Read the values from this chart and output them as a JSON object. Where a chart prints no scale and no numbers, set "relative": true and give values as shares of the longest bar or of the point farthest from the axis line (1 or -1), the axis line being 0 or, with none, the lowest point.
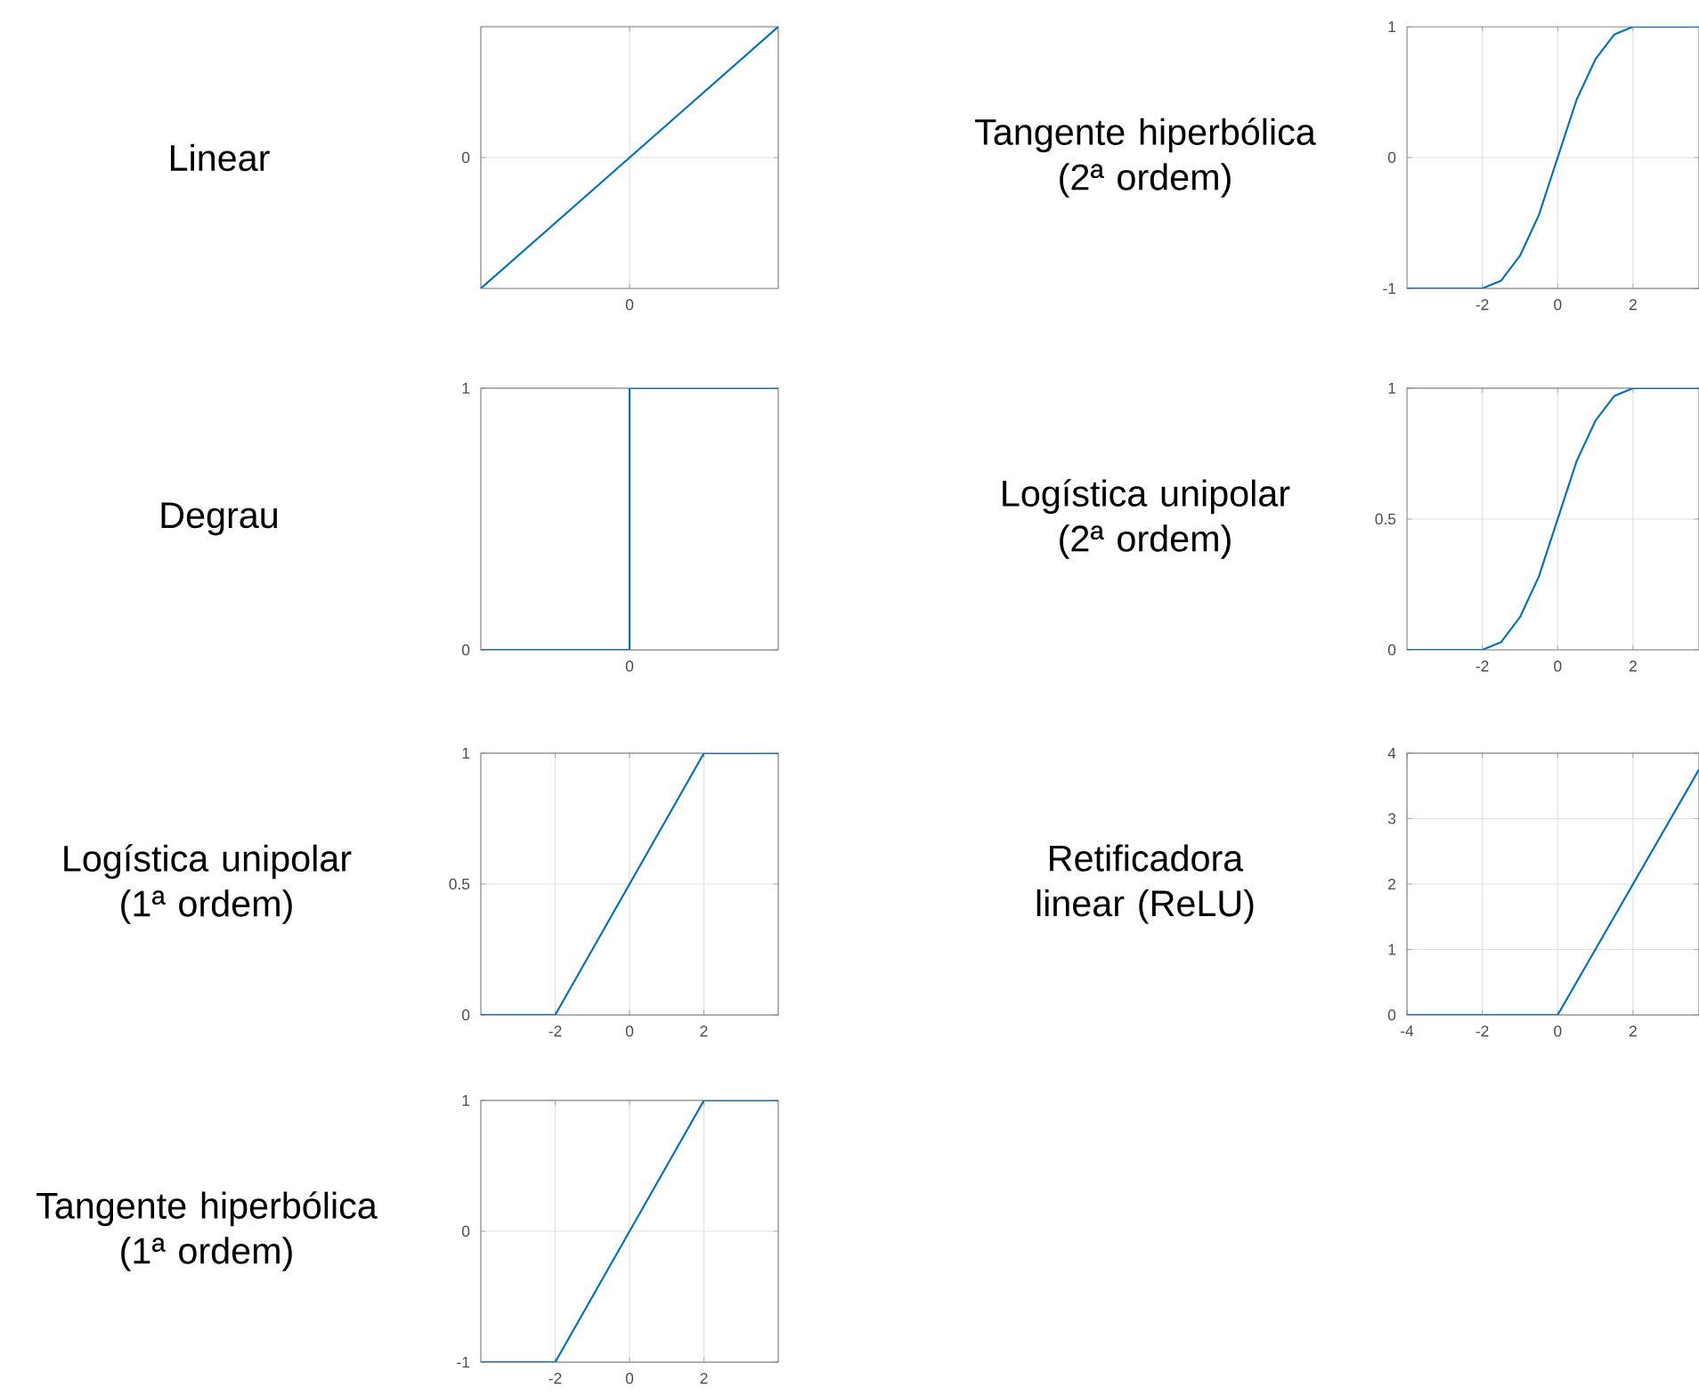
{
  "chart_data": [
    {
      "type": "line",
      "title": "Linear",
      "categories": [
        null,
        null
      ],
      "values": [
        0,
        1
      ],
      "relative": true,
      "color": "#0072bd",
      "annotations": [
        "0",
        "0"
      ],
      "grid": true
    },
    {
      "type": "line",
      "title": "Tangente hiperbólica (2ª ordem)",
      "x": [
        -4,
        -2,
        -1.5,
        -1,
        -0.5,
        0,
        0.5,
        1,
        1.5,
        2,
        3.75
      ],
      "values": [
        -1,
        -1,
        -0.94,
        -0.75,
        -0.44,
        0,
        0.44,
        0.75,
        0.94,
        1,
        1
      ],
      "color": "#0072bd",
      "xlim": [
        -4,
        3.75
      ],
      "ylim": [
        -1,
        1
      ],
      "xticks": [
        -2,
        0,
        2
      ],
      "yticks": [
        -1,
        0,
        1
      ],
      "grid": true
    },
    {
      "type": "step",
      "title": "Degrau",
      "categories": [
        null,
        null,
        null
      ],
      "values": [
        0,
        1,
        1
      ],
      "color": "#0072bd",
      "ylim": [
        0,
        1
      ],
      "yticks": [
        0,
        1
      ],
      "annotations": [
        "0"
      ],
      "grid": true
    },
    {
      "type": "line",
      "title": "Logística unipolar (2ª ordem)",
      "x": [
        -4,
        -2,
        -1.5,
        -1,
        -0.5,
        0,
        0.5,
        1,
        1.5,
        2,
        3.75
      ],
      "values": [
        0,
        0,
        0.03,
        0.125,
        0.28,
        0.5,
        0.72,
        0.875,
        0.97,
        1,
        1
      ],
      "color": "#0072bd",
      "xlim": [
        -4,
        3.75
      ],
      "ylim": [
        0,
        1
      ],
      "xticks": [
        -2,
        0,
        2
      ],
      "yticks": [
        0,
        0.5,
        1
      ],
      "grid": true
    },
    {
      "type": "line",
      "title": "Logística unipolar (1ª ordem)",
      "x": [
        -4,
        -2,
        2,
        4
      ],
      "values": [
        0,
        0,
        1,
        1
      ],
      "color": "#0072bd",
      "xlim": [
        -4,
        4
      ],
      "ylim": [
        0,
        1
      ],
      "xticks": [
        -2,
        0,
        2
      ],
      "yticks": [
        0,
        0.5,
        1
      ],
      "grid": true
    },
    {
      "type": "line",
      "title": "Retificadora linear (ReLU)",
      "x": [
        -4,
        0,
        3.75
      ],
      "values": [
        0,
        0,
        3.75
      ],
      "color": "#0072bd",
      "xlim": [
        -4,
        3.75
      ],
      "ylim": [
        0,
        4
      ],
      "xticks": [
        -4,
        -2,
        0,
        2
      ],
      "yticks": [
        0,
        1,
        2,
        3,
        4
      ],
      "grid": true
    },
    {
      "type": "line",
      "title": "Tangente hiperbólica (1ª ordem)",
      "x": [
        -4,
        -2,
        2,
        4
      ],
      "values": [
        -1,
        -1,
        1,
        1
      ],
      "color": "#0072bd",
      "xlim": [
        -4,
        4
      ],
      "ylim": [
        -1,
        1
      ],
      "xticks": [
        -2,
        0,
        2
      ],
      "yticks": [
        -1,
        0,
        1
      ],
      "grid": true
    }
  ]
}
